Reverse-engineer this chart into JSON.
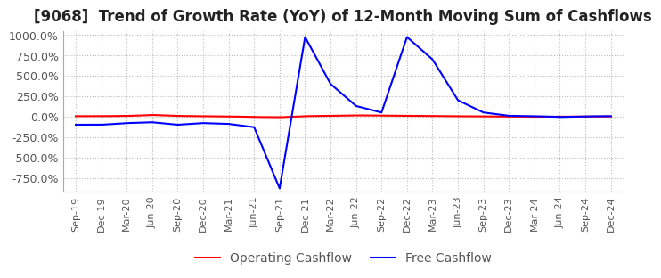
{
  "title": "[9068]  Trend of Growth Rate (YoY) of 12-Month Moving Sum of Cashflows",
  "title_fontsize": 12,
  "x_labels": [
    "Sep-19",
    "Dec-19",
    "Mar-20",
    "Jun-20",
    "Sep-20",
    "Dec-20",
    "Mar-21",
    "Jun-21",
    "Sep-21",
    "Dec-21",
    "Mar-22",
    "Jun-22",
    "Sep-22",
    "Dec-22",
    "Mar-23",
    "Jun-23",
    "Sep-23",
    "Dec-23",
    "Mar-24",
    "Jun-24",
    "Sep-24",
    "Dec-24"
  ],
  "yticks": [
    -750,
    -500,
    -250,
    0,
    250,
    500,
    750,
    1000
  ],
  "ylim": [
    -920,
    1050
  ],
  "op_color": "#FF0000",
  "free_color": "#0000FF",
  "background_color": "#FFFFFF",
  "grid_color": "#BBBBBB",
  "legend_labels": [
    "Operating Cashflow",
    "Free Cashflow"
  ],
  "legend_fontsize": 10,
  "op_cf": [
    5,
    5,
    8,
    20,
    8,
    5,
    2,
    -5,
    -8,
    5,
    10,
    15,
    12,
    8,
    5,
    4,
    3,
    0,
    -2,
    -1,
    1,
    2
  ],
  "free_cf": [
    -100,
    -100,
    -80,
    -70,
    -100,
    -80,
    -90,
    -130,
    -880,
    975,
    400,
    130,
    50,
    975,
    700,
    200,
    50,
    10,
    5,
    -5,
    2,
    5
  ]
}
